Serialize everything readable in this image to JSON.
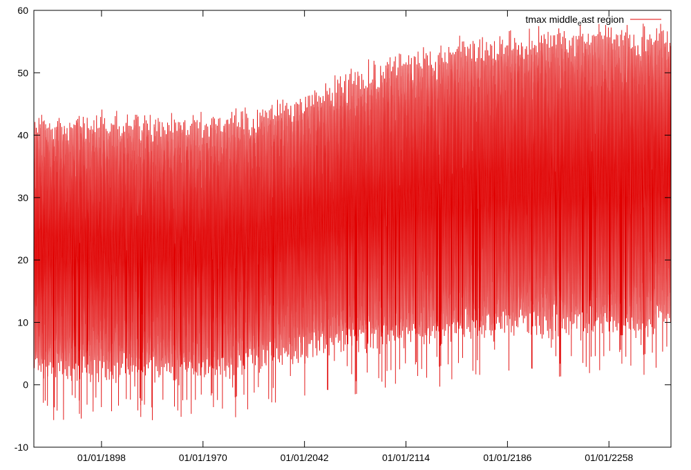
{
  "chart_data": {
    "type": "line",
    "title": "",
    "xlabel": "",
    "ylabel": "",
    "ylim": [
      -10,
      60
    ],
    "yticks": [
      -10,
      0,
      10,
      20,
      30,
      40,
      50,
      60
    ],
    "xticks": [
      "01/01/1898",
      "01/01/1970",
      "01/01/2042",
      "01/01/2114",
      "01/01/2186",
      "01/01/2258"
    ],
    "xlim_years": [
      1850,
      2302
    ],
    "grid": false,
    "legend": {
      "position": "top-right",
      "label_main": "tmax middle",
      "label_subscript": "e",
      "label_rest": "ast region"
    },
    "series": [
      {
        "name": "tmax middle_east region",
        "color": "#e00000",
        "summary": "daily maximum temperature; annual cycle between seasonal low and high",
        "envelope_years": [
          1850,
          1900,
          1950,
          1970,
          2000,
          2042,
          2070,
          2114,
          2150,
          2186,
          2220,
          2258,
          2302
        ],
        "envelope_upper": [
          42,
          42,
          42,
          42,
          43,
          46,
          49,
          52,
          54,
          55,
          56,
          56,
          56
        ],
        "envelope_lower": [
          2,
          2,
          2,
          2,
          3,
          5,
          6,
          7,
          8,
          9,
          9,
          9,
          10
        ]
      }
    ]
  }
}
